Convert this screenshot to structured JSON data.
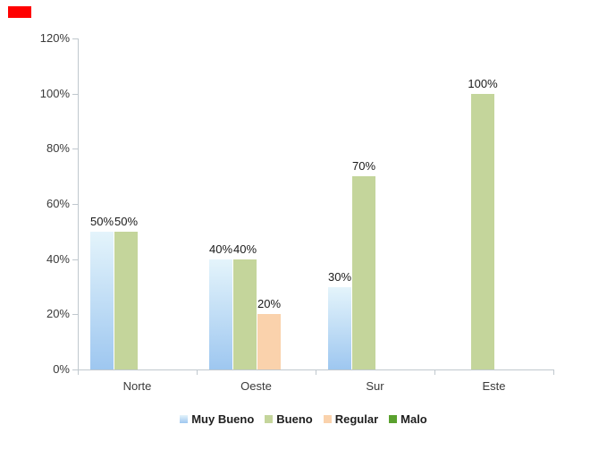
{
  "chart_data": {
    "type": "bar",
    "title": "",
    "categories": [
      "Norte",
      "Oeste",
      "Sur",
      "Este"
    ],
    "series": [
      {
        "name": "Muy Bueno",
        "values": [
          50,
          40,
          30,
          null
        ],
        "gradient_top": "#E4F4FB",
        "gradient_bottom": "#9EC7F0"
      },
      {
        "name": "Bueno",
        "values": [
          50,
          40,
          70,
          100
        ],
        "color": "#C4D59B"
      },
      {
        "name": "Regular",
        "values": [
          null,
          20,
          null,
          null
        ],
        "color": "#FAD2AC"
      },
      {
        "name": "Malo",
        "values": [
          null,
          null,
          null,
          null
        ],
        "color": "#5AA12E"
      }
    ],
    "y_ticks": [
      "0%",
      "20%",
      "40%",
      "60%",
      "80%",
      "100%",
      "120%"
    ],
    "ylim": [
      0,
      120
    ],
    "y_tick_step": 20,
    "data_label_suffix": "%",
    "xlabel": "",
    "ylabel": "",
    "gridlines": false,
    "legend_position": "bottom"
  },
  "colors": {
    "background": "#FFFFFF",
    "axis": "#C0C8CE",
    "tick_text": "#3A3A3A",
    "category_text": "#3A3A3A",
    "data_label_text": "#1A1A1A",
    "legend_text": "#1F1F1F",
    "marker_red": "#FF0000"
  }
}
